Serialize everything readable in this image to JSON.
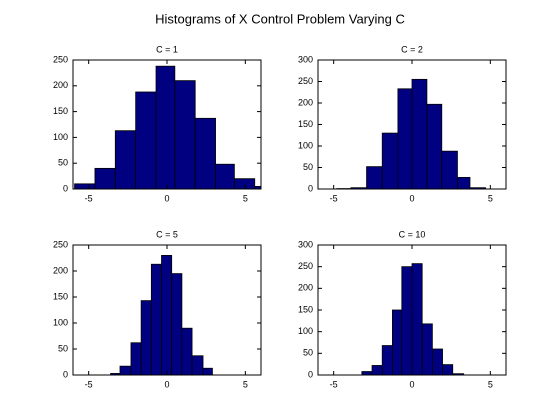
{
  "title": "Histograms of X Control Problem Varying C",
  "chart_data": [
    {
      "type": "histogram",
      "title": "C = 1",
      "color": "#000080",
      "bins": [
        -5.9,
        -4.6,
        -3.3,
        -2.0,
        -0.7,
        0.5,
        1.8,
        3.1,
        4.3,
        5.6,
        6.9
      ],
      "values": [
        10,
        40,
        113,
        188,
        238,
        210,
        137,
        48,
        20,
        5
      ],
      "xlim": [
        -6,
        6
      ],
      "xticks": [
        -5,
        0,
        5
      ],
      "ylim": [
        0,
        250
      ],
      "yticks": [
        0,
        50,
        100,
        150,
        200,
        250
      ]
    },
    {
      "type": "histogram",
      "title": "C = 2",
      "color": "#000080",
      "bins": [
        -4.8,
        -3.9,
        -2.9,
        -1.9,
        -0.9,
        0,
        0.95,
        1.9,
        2.9,
        3.7,
        4.7
      ],
      "values": [
        1,
        3,
        52,
        130,
        233,
        255,
        197,
        88,
        27,
        3
      ],
      "xlim": [
        -6,
        6
      ],
      "xticks": [
        -5,
        0,
        5
      ],
      "ylim": [
        0,
        300
      ],
      "yticks": [
        0,
        50,
        100,
        150,
        200,
        250,
        300
      ]
    },
    {
      "type": "histogram",
      "title": "C = 5",
      "color": "#000080",
      "bins": [
        -3.6,
        -3.0,
        -2.3,
        -1.65,
        -1.0,
        -0.35,
        0.3,
        0.95,
        1.6,
        2.3,
        2.9
      ],
      "values": [
        3,
        17,
        62,
        143,
        213,
        230,
        195,
        90,
        37,
        13
      ],
      "xlim": [
        -6,
        6
      ],
      "xticks": [
        -5,
        0,
        5
      ],
      "ylim": [
        0,
        250
      ],
      "yticks": [
        0,
        50,
        100,
        150,
        200,
        250
      ]
    },
    {
      "type": "histogram",
      "title": "C = 10",
      "color": "#000080",
      "bins": [
        -3.2,
        -2.55,
        -1.9,
        -1.25,
        -0.65,
        0,
        0.65,
        1.3,
        1.95,
        2.6,
        3.3
      ],
      "values": [
        8,
        22,
        68,
        150,
        250,
        257,
        118,
        60,
        24,
        3
      ],
      "xlim": [
        -6,
        6
      ],
      "xticks": [
        -5,
        0,
        5
      ],
      "ylim": [
        0,
        300
      ],
      "yticks": [
        0,
        50,
        100,
        150,
        200,
        250,
        300
      ]
    }
  ]
}
